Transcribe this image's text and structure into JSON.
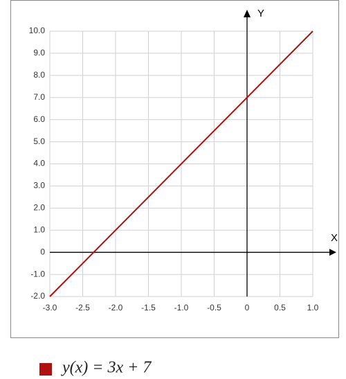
{
  "chart_data": {
    "type": "line",
    "xlabel": "X",
    "ylabel": "Y",
    "x": [
      -3,
      1
    ],
    "series": [
      {
        "name": "y(x) = 3x + 7",
        "color": "#b01010",
        "values": [
          -2,
          10
        ]
      }
    ],
    "xlim": [
      -3,
      1
    ],
    "xticks": [
      {
        "value": -3,
        "label": "-3.0"
      },
      -2.5,
      {
        "value": -2,
        "label": "-2.0"
      },
      -1.5,
      {
        "value": -1,
        "label": "-1.0"
      },
      -0.5,
      0,
      0.5,
      {
        "value": 1,
        "label": "1.0"
      }
    ],
    "ylim": [
      -2,
      10
    ],
    "yticks": [
      {
        "value": -2,
        "label": "-2.0"
      },
      {
        "value": -1,
        "label": "-1.0"
      },
      0,
      {
        "value": 1,
        "label": "1.0"
      },
      {
        "value": 2,
        "label": "2.0"
      },
      {
        "value": 3,
        "label": "3.0"
      },
      {
        "value": 4,
        "label": "4.0"
      },
      {
        "value": 5,
        "label": "5.0"
      },
      {
        "value": 6,
        "label": "6.0"
      },
      {
        "value": 7,
        "label": "7.0"
      },
      {
        "value": 8,
        "label": "8.0"
      },
      {
        "value": 9,
        "label": "9.0"
      },
      {
        "value": 10,
        "label": "10.0"
      }
    ],
    "grid": true
  }
}
